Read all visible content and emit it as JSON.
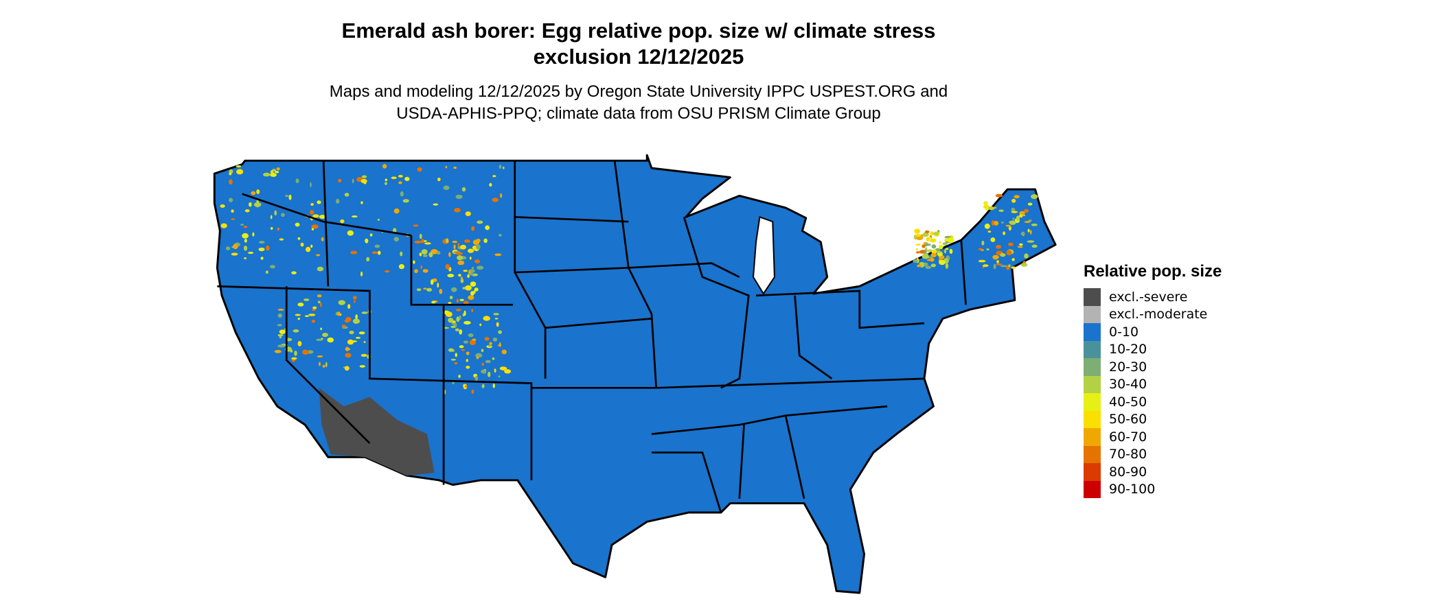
{
  "title": {
    "line1": "Emerald ash borer: Egg relative pop. size w/ climate stress",
    "line2": "exclusion 12/12/2025"
  },
  "subtitle": {
    "line1": "Maps and modeling 12/12/2025 by Oregon State University IPPC USPEST.ORG and",
    "line2": "USDA-APHIS-PPQ; climate data from OSU PRISM Climate Group"
  },
  "map": {
    "region": "Conterminous United States",
    "dominant_class": "0-10",
    "excluded_area": "desert Southwest (excl.-severe), scattered excl.-moderate",
    "colors": {
      "land": "#1a73cc",
      "border": "#000000"
    }
  },
  "legend": {
    "title": "Relative pop. size",
    "placement": "right",
    "items": [
      {
        "label": "excl.-severe",
        "color": "#4d4d4d"
      },
      {
        "label": "excl.-moderate",
        "color": "#b3b3b3"
      },
      {
        "label": "0-10",
        "color": "#1a73cc"
      },
      {
        "label": "10-20",
        "color": "#4a929b"
      },
      {
        "label": "20-30",
        "color": "#7dae73"
      },
      {
        "label": "30-40",
        "color": "#b3d144"
      },
      {
        "label": "40-50",
        "color": "#e6f016"
      },
      {
        "label": "50-60",
        "color": "#f9e000"
      },
      {
        "label": "60-70",
        "color": "#f0a800"
      },
      {
        "label": "70-80",
        "color": "#e67300"
      },
      {
        "label": "80-90",
        "color": "#db3a00"
      },
      {
        "label": "90-100",
        "color": "#cc0000"
      }
    ]
  }
}
